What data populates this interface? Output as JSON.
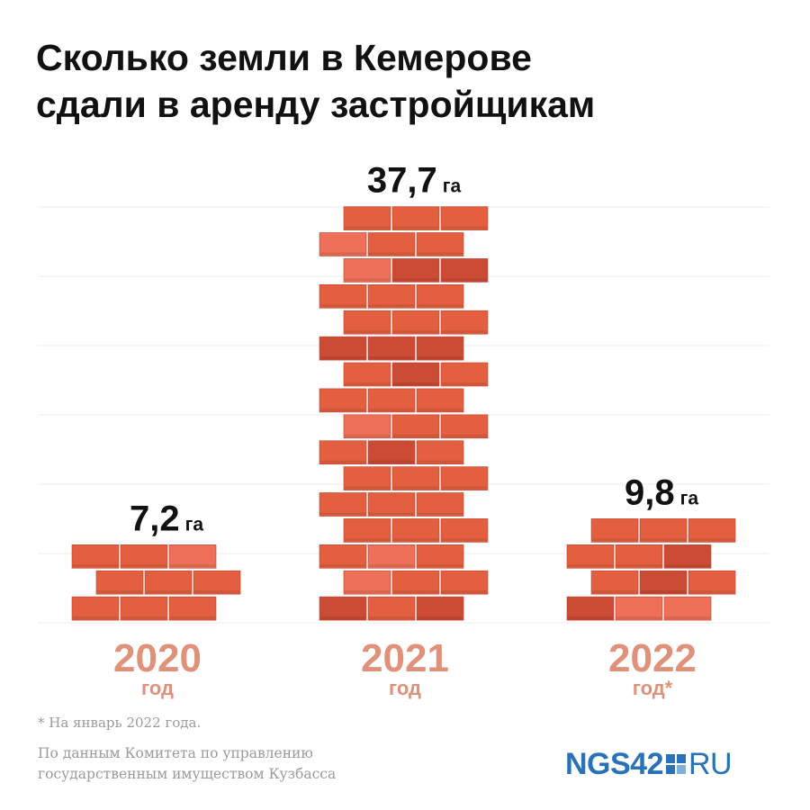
{
  "title_lines": [
    "Сколько земли в Кемерове",
    "сдали в аренду застройщикам"
  ],
  "chart_data": {
    "type": "bar",
    "categories": [
      "2020",
      "2021",
      "2022"
    ],
    "category_sublabels": [
      "год",
      "год",
      "год*"
    ],
    "values": [
      7.2,
      37.7,
      9.8
    ],
    "value_labels": [
      "7,2",
      "37,7",
      "9,8"
    ],
    "unit": "га",
    "grid": true,
    "colors": {
      "brick": "#e45f3f",
      "brick_dark": "#cc4b35",
      "brick_light": "#ef7058",
      "mortar": "#ffffff",
      "year_label": "#e09179",
      "value_label": "#111111",
      "grid": "#ececec"
    }
  },
  "footnote": "* На январь 2022 года.",
  "source_lines": [
    "По данным Комитета по управлению",
    "государственным имуществом Кузбасса"
  ],
  "logo": {
    "brand": "NGS42",
    "suffix": "RU",
    "icon": "ngs-squares-icon"
  }
}
